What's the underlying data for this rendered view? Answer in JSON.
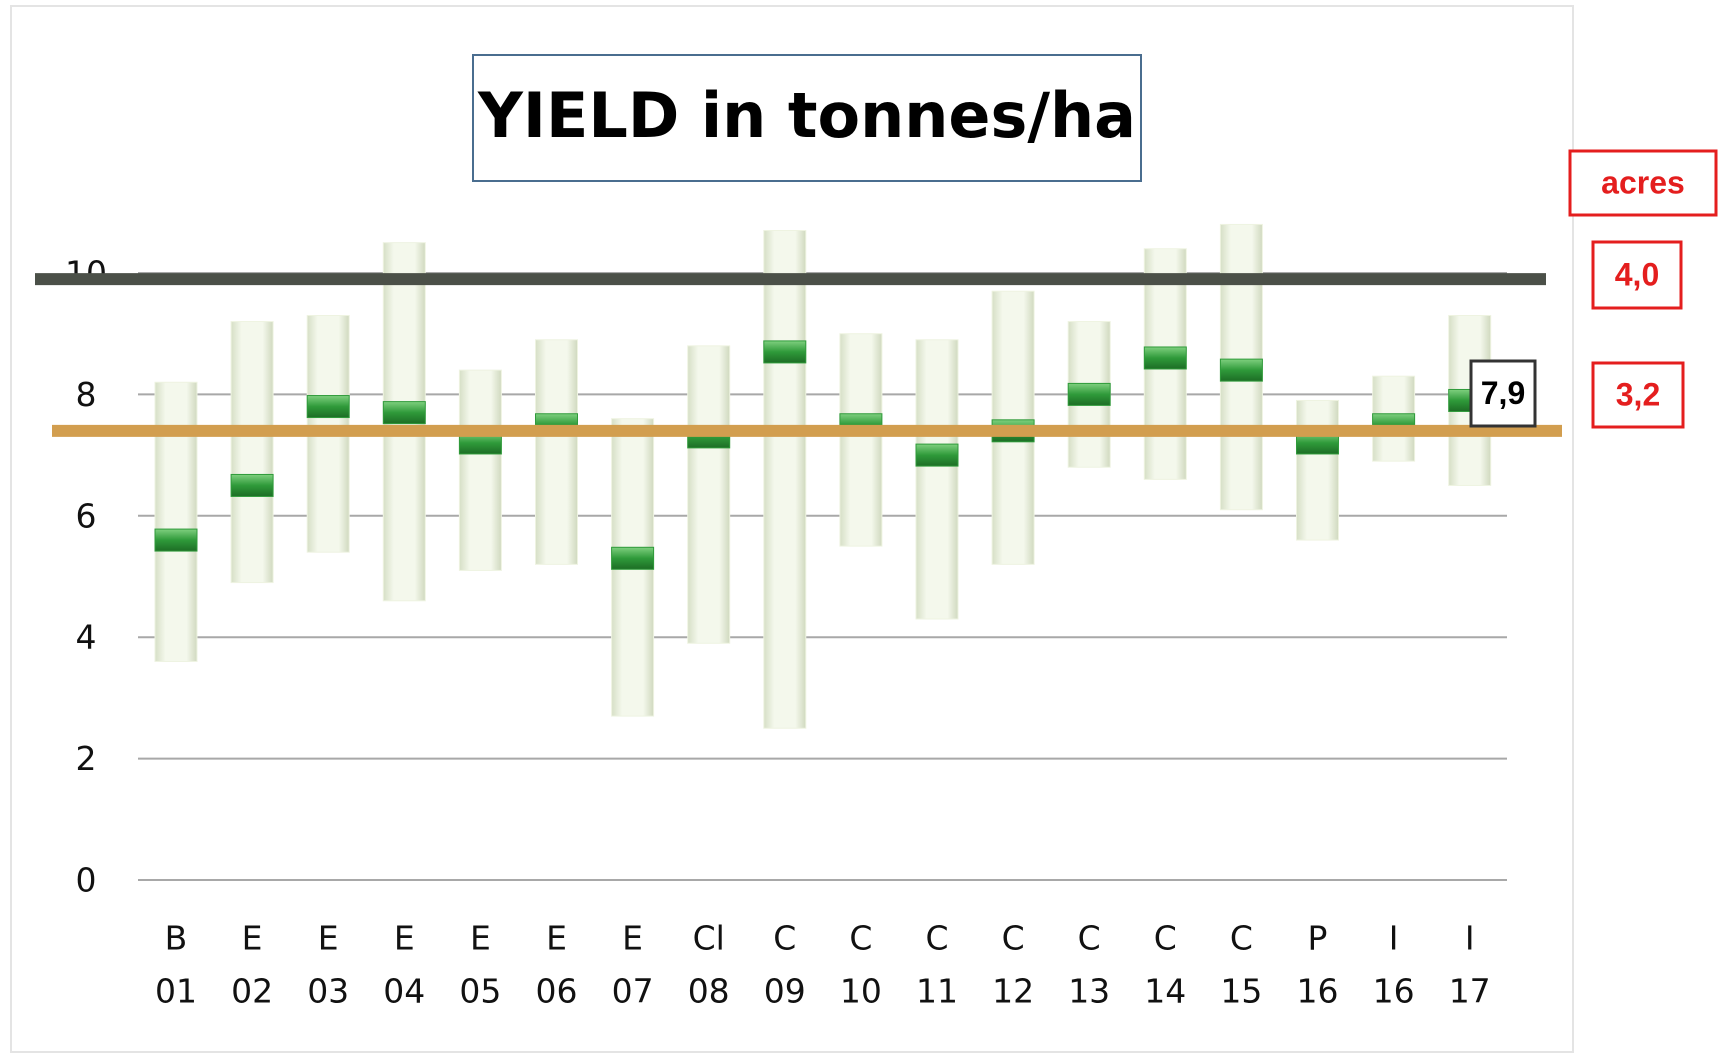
{
  "chart_data": {
    "type": "range-bar",
    "title": "YIELD in tonnes/ha",
    "categories": [
      [
        "B",
        "01"
      ],
      [
        "E",
        "02"
      ],
      [
        "E",
        "03"
      ],
      [
        "E",
        "04"
      ],
      [
        "E",
        "05"
      ],
      [
        "E",
        "06"
      ],
      [
        "E",
        "07"
      ],
      [
        "Cl",
        "08"
      ],
      [
        "C",
        "09"
      ],
      [
        "C",
        "10"
      ],
      [
        "C",
        "11"
      ],
      [
        "C",
        "12"
      ],
      [
        "C",
        "13"
      ],
      [
        "C",
        "14"
      ],
      [
        "C",
        "15"
      ],
      [
        "P",
        "16"
      ],
      [
        "I",
        "16"
      ],
      [
        "I",
        "17"
      ]
    ],
    "low": [
      3.6,
      4.9,
      5.4,
      4.6,
      5.1,
      5.2,
      2.7,
      3.9,
      2.5,
      5.5,
      4.3,
      5.2,
      6.8,
      6.6,
      6.1,
      5.6,
      6.9,
      6.5
    ],
    "high": [
      8.2,
      9.2,
      9.3,
      10.5,
      8.4,
      8.9,
      7.6,
      8.8,
      10.7,
      9.0,
      8.9,
      9.7,
      9.2,
      10.4,
      10.8,
      7.9,
      8.3,
      9.3
    ],
    "mean": [
      5.6,
      6.5,
      7.8,
      7.7,
      7.2,
      7.5,
      5.3,
      7.3,
      8.7,
      7.5,
      7.0,
      7.4,
      8.0,
      8.6,
      8.4,
      7.2,
      7.5,
      7.9
    ],
    "bar_color": "#eef3e1",
    "mean_color": "#2f9a3a",
    "ylim": [
      0,
      11
    ],
    "yticks": [
      0,
      2,
      4,
      6,
      8,
      10
    ],
    "grid": true,
    "reference_lines": [
      {
        "value": 9.9,
        "color": "#4b5048"
      },
      {
        "value": 7.4,
        "color": "#d29e4f"
      }
    ],
    "annotations": [
      "acres",
      "4,0",
      "3,2",
      "7,9"
    ]
  }
}
